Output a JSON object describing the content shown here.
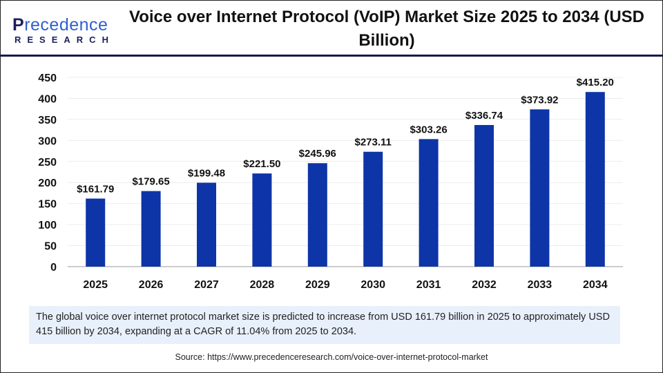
{
  "logo": {
    "main_first": "P",
    "main_rest": "recedence",
    "sub": "RESEARCH"
  },
  "title": "Voice over Internet Protocol (VoIP) Market Size 2025 to 2034 (USD Billion)",
  "chart_data": {
    "type": "bar",
    "categories": [
      "2025",
      "2026",
      "2027",
      "2028",
      "2029",
      "2030",
      "2031",
      "2032",
      "2033",
      "2034"
    ],
    "values": [
      161.79,
      179.65,
      199.48,
      221.5,
      245.96,
      273.11,
      303.26,
      336.74,
      373.92,
      415.2
    ],
    "data_labels": [
      "$161.79",
      "$179.65",
      "$199.48",
      "$221.50",
      "$245.96",
      "$273.11",
      "$303.26",
      "$336.74",
      "$373.92",
      "$415.20"
    ],
    "ylim": [
      0,
      450
    ],
    "yticks": [
      0,
      50,
      100,
      150,
      200,
      250,
      300,
      350,
      400,
      450
    ],
    "xlabel": "",
    "ylabel": "",
    "grid": true,
    "bar_color": "#0d35a8"
  },
  "caption": "The global voice over internet protocol market size is predicted to increase from USD 161.79 billion in 2025 to approximately USD 415 billion by 2034, expanding at a CAGR of 11.04% from 2025 to 2034.",
  "source": "Source: https://www.precedenceresearch.com/voice-over-internet-protocol-market"
}
